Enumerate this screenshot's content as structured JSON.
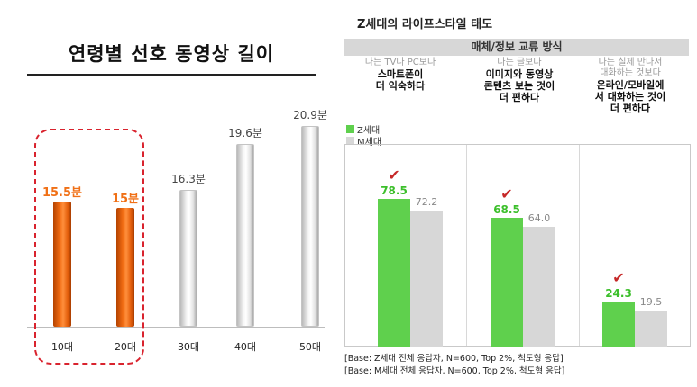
{
  "chart_data": [
    {
      "type": "bar",
      "title": "연령별 선호 동영상 길이",
      "categories": [
        "10대",
        "20대",
        "30대",
        "40대",
        "50대"
      ],
      "values": [
        15.5,
        15,
        16.3,
        19.6,
        20.9
      ],
      "value_labels": [
        "15.5분",
        "15분",
        "16.3분",
        "19.6분",
        "20.9분"
      ],
      "highlighted": [
        "10대",
        "20대"
      ],
      "ylim": [
        0,
        21
      ],
      "colors": {
        "highlight": "#f07016",
        "default": "#e6e6e6",
        "highlight_box": "#d9232e"
      }
    },
    {
      "type": "bar",
      "title": "Z세대의 라이프스타일 태도",
      "subtitle": "매체/정보 교류 방식",
      "categories": [
        {
          "pre": "나는 TV나 PC보다",
          "main": "스마트폰이\n더 익숙하다"
        },
        {
          "pre": "나는 글보다",
          "main": "이미지와 동영상\n콘텐츠 보는 것이\n더 편하다"
        },
        {
          "pre": "나는 실제 만나서\n대화하는 것보다",
          "main": "온라인/모바일에\n서 대화하는 것이\n더 편하다"
        }
      ],
      "series": [
        {
          "name": "Z세대",
          "values": [
            78.5,
            68.5,
            24.3
          ],
          "labels": [
            "78.5",
            "68.5",
            "24.3"
          ],
          "color": "#5fd04d"
        },
        {
          "name": "M세대",
          "values": [
            72.2,
            64.0,
            19.5
          ],
          "labels": [
            "72.2",
            "64.0",
            "19.5"
          ],
          "color": "#d7d7d7"
        }
      ],
      "check_mark": "✔",
      "ylim": [
        0,
        100
      ],
      "footnotes": [
        "[Base: Z세대 전체 응답자, N=600, Top 2%, 척도형 응답]",
        "[Base: M세대 전체 응답자, N=600, Top 2%, 척도형 응답]"
      ]
    }
  ]
}
